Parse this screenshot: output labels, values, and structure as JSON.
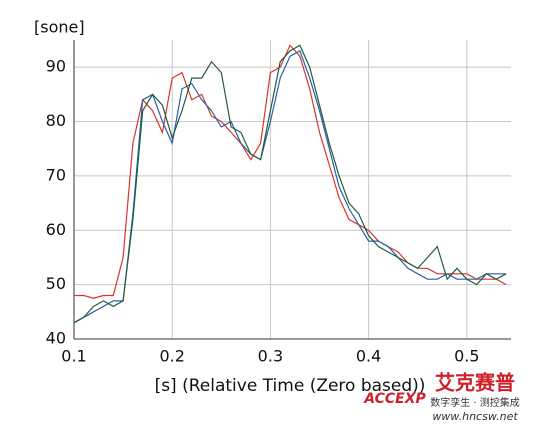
{
  "chart_data": {
    "type": "line",
    "y_label": "[sone]",
    "x_label": "[s] (Relative Time (Zero based))",
    "x": [
      0.1,
      0.11,
      0.12,
      0.13,
      0.14,
      0.15,
      0.16,
      0.17,
      0.18,
      0.19,
      0.2,
      0.21,
      0.22,
      0.23,
      0.24,
      0.25,
      0.26,
      0.27,
      0.28,
      0.29,
      0.3,
      0.31,
      0.32,
      0.33,
      0.34,
      0.35,
      0.36,
      0.37,
      0.38,
      0.39,
      0.4,
      0.41,
      0.42,
      0.43,
      0.44,
      0.45,
      0.46,
      0.47,
      0.48,
      0.49,
      0.5,
      0.51,
      0.52,
      0.53,
      0.54
    ],
    "series": [
      {
        "color": "#d9342b",
        "values": [
          48,
          48,
          47.5,
          48,
          48,
          55,
          76,
          84,
          82,
          78,
          88,
          89,
          84,
          85,
          81,
          80,
          78,
          76,
          73,
          76,
          89,
          90,
          94,
          92,
          86,
          78,
          72,
          66,
          62,
          61,
          60,
          58,
          57,
          56,
          54,
          53,
          53,
          52,
          52,
          52,
          52,
          51,
          51,
          51,
          50
        ]
      },
      {
        "color": "#2a5fa8",
        "values": [
          43,
          44,
          45,
          46,
          47,
          47,
          63,
          84,
          85,
          80,
          76,
          86,
          87,
          84,
          82,
          79,
          80,
          76,
          74,
          73,
          80,
          88,
          92,
          93,
          88,
          82,
          75,
          68,
          64,
          61,
          58,
          58,
          57,
          55,
          53,
          52,
          51,
          51,
          52,
          51,
          51,
          51,
          52,
          52,
          52
        ]
      },
      {
        "color": "#1f5e3c",
        "values": [
          43,
          44,
          46,
          47,
          46,
          47,
          62,
          82,
          85,
          83,
          77,
          82,
          88,
          88,
          91,
          89,
          79,
          78,
          74,
          73,
          82,
          91,
          93,
          94,
          90,
          83,
          76,
          70,
          65,
          63,
          59,
          57,
          56,
          55,
          54,
          53,
          55,
          57,
          51,
          53,
          51,
          50,
          52,
          51,
          52
        ]
      }
    ],
    "xlim": [
      0.1,
      0.545
    ],
    "ylim": [
      40,
      95
    ],
    "xticks": [
      0.1,
      0.2,
      0.3,
      0.4,
      0.5
    ],
    "yticks": [
      40,
      50,
      60,
      70,
      80,
      90
    ],
    "grid": true,
    "watermark": {
      "brand": "艾克赛普",
      "logo": "ACCEXP",
      "slogan": "数字孪生 · 测控集成",
      "url": "www.hncsw.net"
    }
  }
}
